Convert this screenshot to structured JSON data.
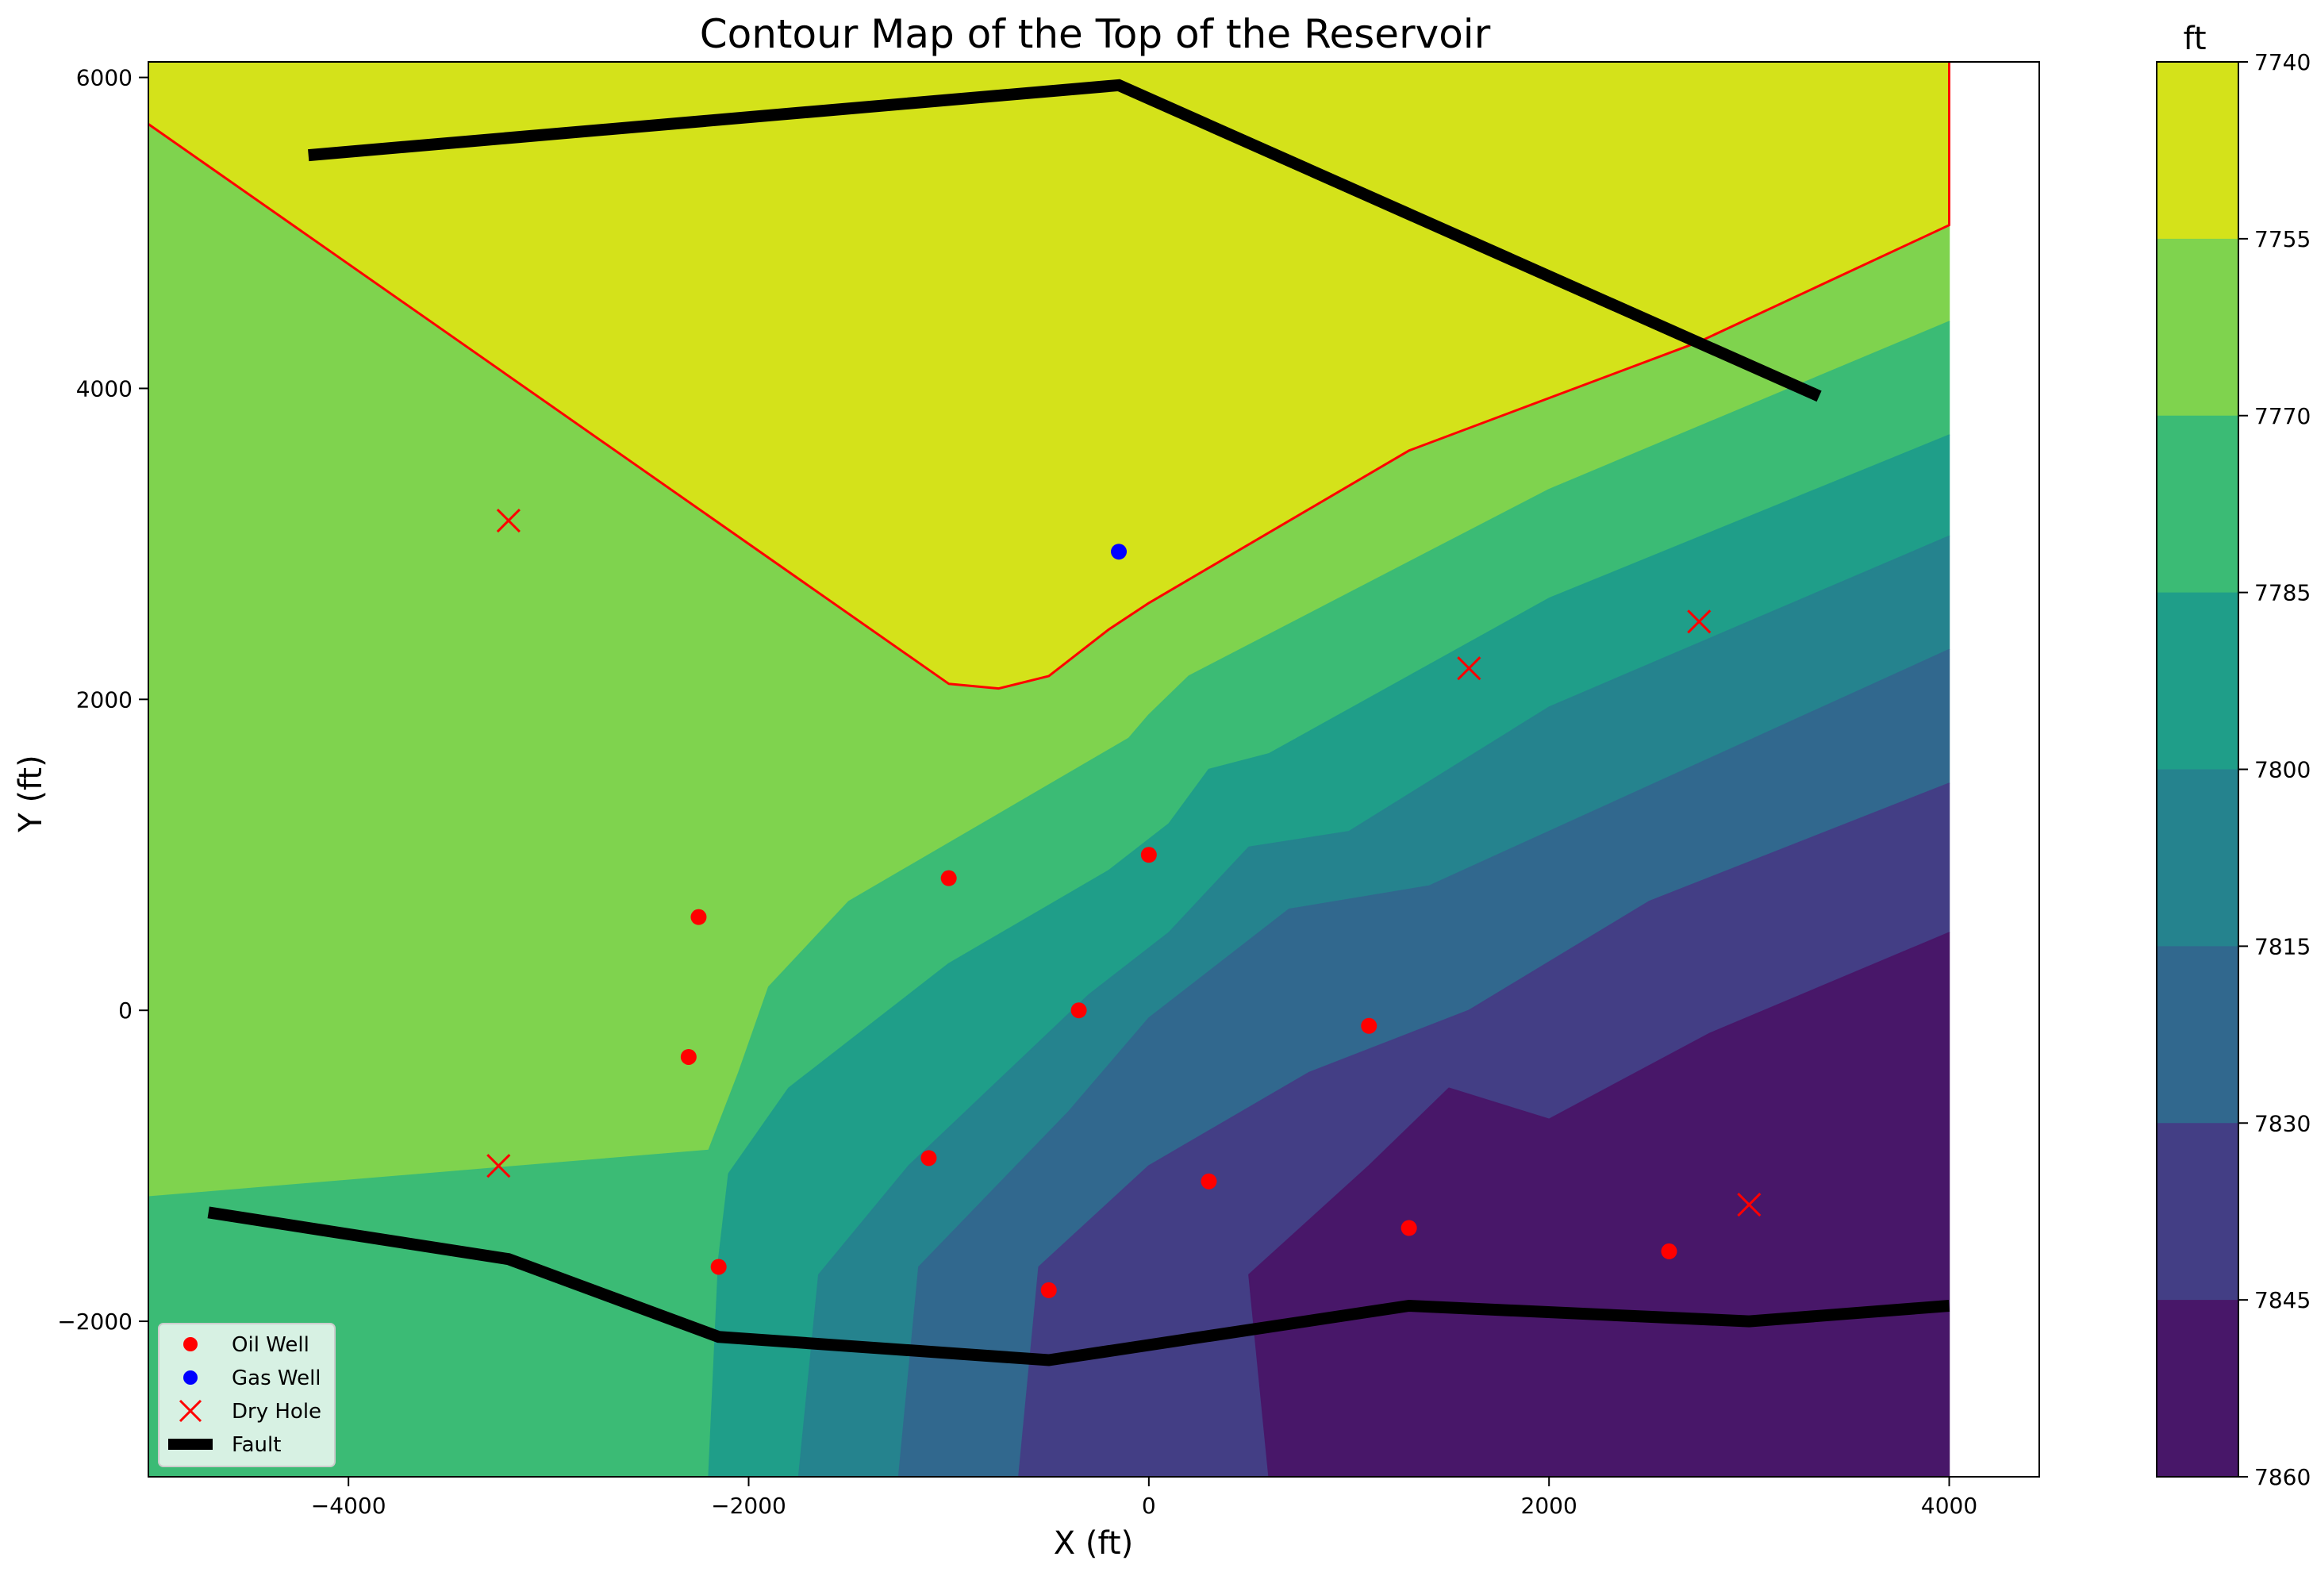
{
  "chart_data": {
    "type": "contour",
    "title": "Contour Map of the Top of the Reservoir",
    "xlabel": "X (ft)",
    "ylabel": "Y (ft)",
    "xlim": [
      -5000,
      4450
    ],
    "ylim": [
      -3000,
      6100
    ],
    "x_ticks": [
      -4000,
      -2000,
      0,
      2000,
      4000
    ],
    "y_ticks": [
      -2000,
      0,
      2000,
      4000,
      6000
    ],
    "x_tick_labels": [
      "−4000",
      "−2000",
      "0",
      "2000",
      "4000"
    ],
    "y_tick_labels": [
      "−2000",
      "0",
      "2000",
      "4000",
      "6000"
    ],
    "grid": false,
    "colorbar": {
      "label": "ft",
      "levels": [
        7740,
        7755,
        7770,
        7785,
        7800,
        7815,
        7830,
        7845,
        7860
      ],
      "tick_labels": [
        "7740",
        "7755",
        "7770",
        "7785",
        "7800",
        "7815",
        "7830",
        "7845",
        "7860"
      ],
      "colors": [
        "#d4e21a",
        "#7fd34e",
        "#3bbb75",
        "#1f9e89",
        "#25838e",
        "#31688e",
        "#433e85",
        "#481769"
      ]
    },
    "contour_bands": [
      {
        "range": [
          7740,
          7755
        ],
        "color": "#d4e21a",
        "polygon": [
          [
            -5000,
            6100
          ],
          [
            4000,
            6100
          ],
          [
            4000,
            5050
          ],
          [
            2750,
            4300
          ],
          [
            1300,
            3600
          ],
          [
            0,
            2620
          ],
          [
            -200,
            2450
          ],
          [
            -500,
            2150
          ],
          [
            -750,
            2070
          ],
          [
            -1000,
            2100
          ],
          [
            -5000,
            5700
          ]
        ]
      },
      {
        "range": [
          7755,
          7770
        ],
        "color": "#7fd34e",
        "polygon": [
          [
            -5000,
            5700
          ],
          [
            -1000,
            2100
          ],
          [
            -750,
            2070
          ],
          [
            -500,
            2150
          ],
          [
            -200,
            2450
          ],
          [
            0,
            2620
          ],
          [
            1300,
            3600
          ],
          [
            2750,
            4300
          ],
          [
            4000,
            5050
          ],
          [
            4000,
            4430
          ],
          [
            2000,
            3350
          ],
          [
            200,
            2150
          ],
          [
            0,
            1900
          ],
          [
            -100,
            1750
          ],
          [
            -700,
            1300
          ],
          [
            -1500,
            700
          ],
          [
            -1900,
            150
          ],
          [
            -2050,
            -400
          ],
          [
            -2200,
            -900
          ],
          [
            -5000,
            -1200
          ]
        ]
      },
      {
        "range": [
          7770,
          7785
        ],
        "color": "#3bbb75",
        "polygon": [
          [
            -5000,
            -1200
          ],
          [
            -2200,
            -900
          ],
          [
            -2050,
            -400
          ],
          [
            -1900,
            150
          ],
          [
            -1500,
            700
          ],
          [
            -700,
            1300
          ],
          [
            -100,
            1750
          ],
          [
            0,
            1900
          ],
          [
            200,
            2150
          ],
          [
            2000,
            3350
          ],
          [
            4000,
            4430
          ],
          [
            4000,
            3700
          ],
          [
            2000,
            2650
          ],
          [
            600,
            1650
          ],
          [
            300,
            1550
          ],
          [
            100,
            1200
          ],
          [
            -200,
            900
          ],
          [
            -1000,
            300
          ],
          [
            -1800,
            -500
          ],
          [
            -2100,
            -1050
          ],
          [
            -2150,
            -1600
          ],
          [
            -2200,
            -3000
          ],
          [
            -5000,
            -3000
          ]
        ]
      },
      {
        "range": [
          7785,
          7800
        ],
        "color": "#1f9e89",
        "polygon": [
          [
            -2200,
            -3000
          ],
          [
            -2150,
            -1600
          ],
          [
            -2100,
            -1050
          ],
          [
            -1800,
            -500
          ],
          [
            -1000,
            300
          ],
          [
            -200,
            900
          ],
          [
            100,
            1200
          ],
          [
            300,
            1550
          ],
          [
            600,
            1650
          ],
          [
            2000,
            2650
          ],
          [
            4000,
            3700
          ],
          [
            4000,
            3050
          ],
          [
            2000,
            1950
          ],
          [
            1000,
            1150
          ],
          [
            500,
            1050
          ],
          [
            100,
            500
          ],
          [
            -300,
            100
          ],
          [
            -1200,
            -1000
          ],
          [
            -1650,
            -1700
          ],
          [
            -1750,
            -3000
          ]
        ]
      },
      {
        "range": [
          7800,
          7815
        ],
        "color": "#25838e",
        "polygon": [
          [
            -1750,
            -3000
          ],
          [
            -1650,
            -1700
          ],
          [
            -1200,
            -1000
          ],
          [
            -300,
            100
          ],
          [
            100,
            500
          ],
          [
            500,
            1050
          ],
          [
            1000,
            1150
          ],
          [
            2000,
            1950
          ],
          [
            4000,
            3050
          ],
          [
            4000,
            2320
          ],
          [
            1400,
            800
          ],
          [
            700,
            650
          ],
          [
            0,
            -50
          ],
          [
            -400,
            -650
          ],
          [
            -1150,
            -1650
          ],
          [
            -1250,
            -3000
          ]
        ]
      },
      {
        "range": [
          7815,
          7830
        ],
        "color": "#31688e",
        "polygon": [
          [
            -1250,
            -3000
          ],
          [
            -1150,
            -1650
          ],
          [
            -400,
            -650
          ],
          [
            0,
            -50
          ],
          [
            700,
            650
          ],
          [
            1400,
            800
          ],
          [
            4000,
            2320
          ],
          [
            4000,
            1460
          ],
          [
            2500,
            700
          ],
          [
            1600,
            0
          ],
          [
            800,
            -400
          ],
          [
            0,
            -1000
          ],
          [
            -550,
            -1650
          ],
          [
            -650,
            -3000
          ]
        ]
      },
      {
        "range": [
          7830,
          7845
        ],
        "color": "#433e85",
        "polygon": [
          [
            -650,
            -3000
          ],
          [
            -550,
            -1650
          ],
          [
            0,
            -1000
          ],
          [
            800,
            -400
          ],
          [
            1600,
            0
          ],
          [
            2500,
            700
          ],
          [
            4000,
            1460
          ],
          [
            4000,
            500
          ],
          [
            2800,
            -150
          ],
          [
            2000,
            -700
          ],
          [
            1500,
            -500
          ],
          [
            1100,
            -1000
          ],
          [
            500,
            -1700
          ],
          [
            600,
            -3000
          ]
        ]
      },
      {
        "range": [
          7845,
          7860
        ],
        "color": "#481769",
        "polygon": [
          [
            600,
            -3000
          ],
          [
            500,
            -1700
          ],
          [
            1100,
            -1000
          ],
          [
            1500,
            -500
          ],
          [
            2000,
            -700
          ],
          [
            2800,
            -150
          ],
          [
            4000,
            500
          ],
          [
            4000,
            -3000
          ]
        ]
      }
    ],
    "boundary_line": {
      "color": "red",
      "points": [
        [
          -5000,
          5700
        ],
        [
          -1000,
          2100
        ],
        [
          -750,
          2070
        ],
        [
          -500,
          2150
        ],
        [
          -200,
          2450
        ],
        [
          0,
          2620
        ],
        [
          1300,
          3600
        ],
        [
          2750,
          4300
        ],
        [
          4000,
          5050
        ],
        [
          4000,
          6100
        ]
      ]
    },
    "series": [
      {
        "name": "Oil Well",
        "marker": "circle",
        "color": "red",
        "points": [
          [
            -2250,
            600
          ],
          [
            -1000,
            850
          ],
          [
            0,
            1000
          ],
          [
            -2300,
            -300
          ],
          [
            -350,
            0
          ],
          [
            1100,
            -100
          ],
          [
            -1100,
            -950
          ],
          [
            300,
            -1100
          ],
          [
            -2150,
            -1650
          ],
          [
            -500,
            -1800
          ],
          [
            1300,
            -1400
          ],
          [
            2600,
            -1550
          ]
        ]
      },
      {
        "name": "Gas Well",
        "marker": "circle",
        "color": "blue",
        "points": [
          [
            -150,
            2950
          ]
        ]
      },
      {
        "name": "Dry Hole",
        "marker": "x",
        "color": "red",
        "points": [
          [
            -3200,
            3150
          ],
          [
            -3250,
            -1000
          ],
          [
            1600,
            2200
          ],
          [
            2750,
            2500
          ],
          [
            3000,
            -1250
          ]
        ]
      },
      {
        "name": "Fault",
        "marker": "line",
        "color": "black",
        "lines": [
          [
            [
              -4200,
              5500
            ],
            [
              -150,
              5950
            ],
            [
              3350,
              3950
            ]
          ],
          [
            [
              -4700,
              -1300
            ],
            [
              -3200,
              -1600
            ],
            [
              -2150,
              -2100
            ],
            [
              -500,
              -2250
            ],
            [
              1300,
              -1900
            ],
            [
              3000,
              -2000
            ],
            [
              4000,
              -1900
            ]
          ]
        ]
      }
    ],
    "legend": {
      "placement": "lower-left",
      "entries": [
        "Oil Well",
        "Gas Well",
        "Dry Hole",
        "Fault"
      ]
    }
  }
}
